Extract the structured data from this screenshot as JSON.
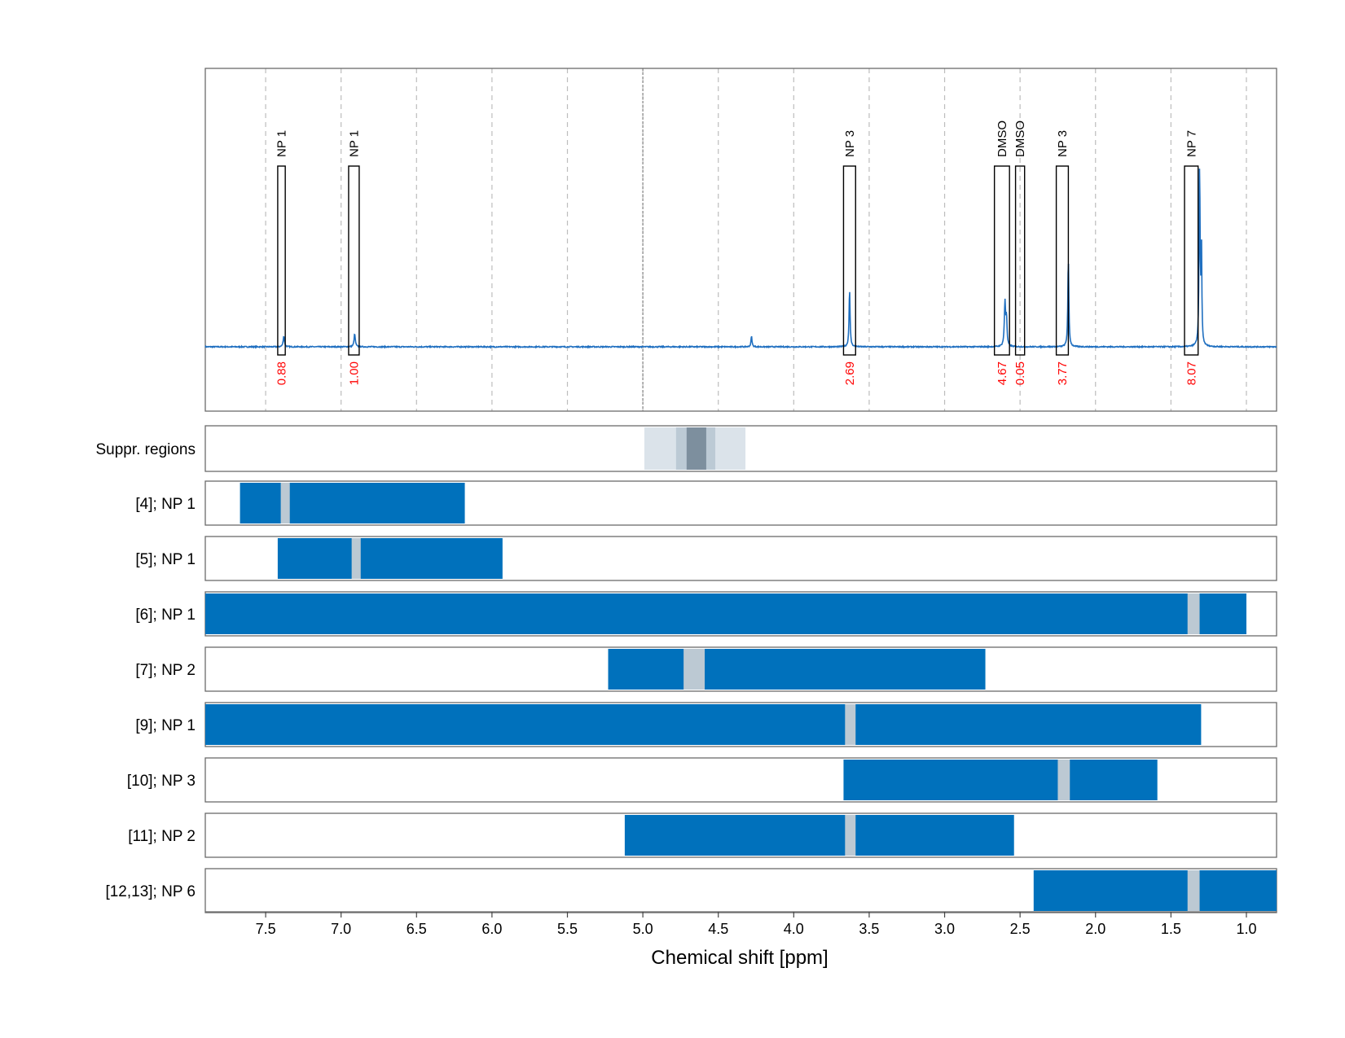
{
  "chart_data": {
    "type": "line",
    "subtype": "nmr-spectrum-with-region-tracks",
    "xlabel": "Chemical shift [ppm]",
    "xlim": [
      7.9,
      0.8
    ],
    "x_reversed": true,
    "x_ticks": [
      "7.5",
      "7.0",
      "6.5",
      "6.0",
      "5.5",
      "5.0",
      "4.5",
      "4.0",
      "3.5",
      "3.0",
      "2.5",
      "2.0",
      "1.5",
      "1.0"
    ],
    "grid": "vertical dashed",
    "series_color": "#1f6fc0",
    "integral_color": "#ff0000",
    "bar_color": "#0071bc",
    "highlight_color": "#bcc9d3",
    "suppression_colors": [
      "#dbe3ea",
      "#bccad5",
      "#7d8f9e"
    ],
    "baseline_noise": 0.004,
    "peaks": [
      {
        "ppm": 7.38,
        "height": 0.04,
        "width": 0.005
      },
      {
        "ppm": 6.91,
        "height": 0.048,
        "width": 0.005
      },
      {
        "ppm": 4.28,
        "height": 0.04,
        "width": 0.004
      },
      {
        "ppm": 3.63,
        "height": 0.215,
        "width": 0.004
      },
      {
        "ppm": 2.6,
        "height": 0.165,
        "width": 0.005
      },
      {
        "ppm": 2.59,
        "height": 0.1,
        "width": 0.004
      },
      {
        "ppm": 2.18,
        "height": 0.325,
        "width": 0.004
      },
      {
        "ppm": 1.31,
        "height": 0.66,
        "width": 0.004
      },
      {
        "ppm": 1.298,
        "height": 0.38,
        "width": 0.003
      }
    ],
    "annotations": [
      {
        "label": "NP 1",
        "x_min": 7.42,
        "x_max": 7.37,
        "integral": "0.88"
      },
      {
        "label": "NP 1",
        "x_min": 6.95,
        "x_max": 6.88,
        "integral": "1.00"
      },
      {
        "label": "NP 3",
        "x_min": 3.67,
        "x_max": 3.59,
        "integral": "2.69"
      },
      {
        "label": "DMSO",
        "x_min": 2.67,
        "x_max": 2.57,
        "integral": "4.67"
      },
      {
        "label": "DMSO",
        "x_min": 2.53,
        "x_max": 2.47,
        "integral": "0.05"
      },
      {
        "label": "NP 3",
        "x_min": 2.26,
        "x_max": 2.18,
        "integral": "3.77"
      },
      {
        "label": "NP 7",
        "x_min": 1.41,
        "x_max": 1.32,
        "integral": "8.07"
      }
    ],
    "suppression_regions": {
      "label": "Suppr. regions",
      "bands": [
        {
          "x_min": 4.99,
          "x_max": 4.32,
          "level": 0
        },
        {
          "x_min": 4.78,
          "x_max": 4.52,
          "level": 1
        },
        {
          "x_min": 4.71,
          "x_max": 4.58,
          "level": 2
        }
      ]
    },
    "tracks": [
      {
        "label": "[4]; NP 1",
        "x_min": 7.67,
        "x_max": 6.18,
        "marker_min": 7.4,
        "marker_max": 7.34
      },
      {
        "label": "[5]; NP 1",
        "x_min": 7.42,
        "x_max": 5.93,
        "marker_min": 6.93,
        "marker_max": 6.87
      },
      {
        "label": "[6]; NP 1",
        "x_min": 7.9,
        "x_max": 1.0,
        "marker_min": 1.39,
        "marker_max": 1.31
      },
      {
        "label": "[7]; NP 2",
        "x_min": 5.23,
        "x_max": 2.73,
        "marker_min": 4.73,
        "marker_max": 4.59
      },
      {
        "label": "[9]; NP 1",
        "x_min": 7.9,
        "x_max": 1.3,
        "marker_min": 3.66,
        "marker_max": 3.59
      },
      {
        "label": "[10]; NP 3",
        "x_min": 3.67,
        "x_max": 1.59,
        "marker_min": 2.25,
        "marker_max": 2.17
      },
      {
        "label": "[11]; NP 2",
        "x_min": 5.12,
        "x_max": 2.54,
        "marker_min": 3.66,
        "marker_max": 3.59
      },
      {
        "label": "[12,13]; NP 6",
        "x_min": 2.41,
        "x_max": 0.8,
        "marker_min": 1.39,
        "marker_max": 1.31
      }
    ]
  }
}
